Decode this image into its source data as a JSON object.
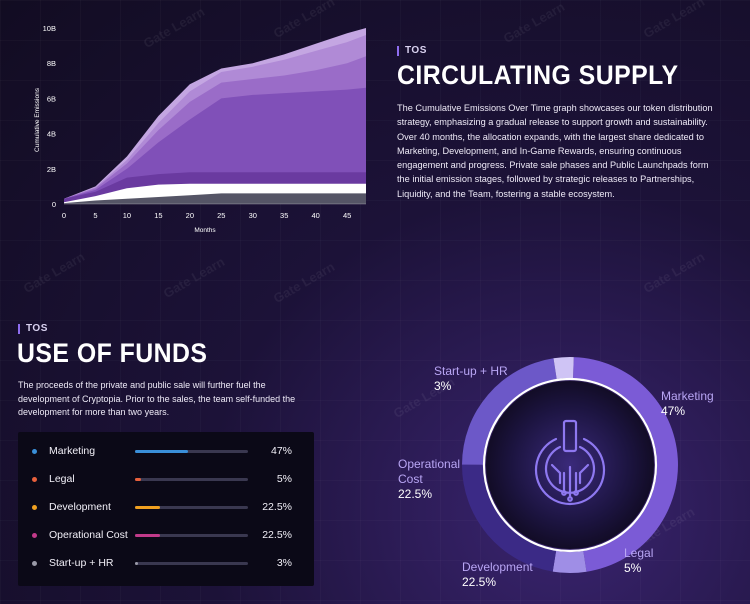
{
  "supply": {
    "tag": "TOS",
    "title": "CIRCULATING SUPPLY",
    "paragraph": "The Cumulative Emissions Over Time graph showcases our token distribution strategy, emphasizing a gradual release to support growth and sustainability. Over 40 months, the allocation expands, with the largest share dedicated to Marketing, Development, and In-Game Rewards, ensuring continuous engagement and progress. Private sale phases and Public Launchpads form the initial emission stages, followed by strategic releases to Partnerships, Liquidity, and the Team, fostering a stable ecosystem."
  },
  "funds": {
    "tag": "TOS",
    "title": "USE OF FUNDS",
    "paragraph": "The proceeds of the private and public sale will further fuel the development of Cryptopia. Prior to the sales, the team self-funded the development for more than two years.",
    "rows": [
      {
        "name": "Marketing",
        "value": "47%",
        "fraction": 0.47,
        "color": "#3a8fd9"
      },
      {
        "name": "Legal",
        "value": "5%",
        "fraction": 0.05,
        "color": "#e8603c"
      },
      {
        "name": "Development",
        "value": "22.5%",
        "fraction": 0.225,
        "color": "#f0a020"
      },
      {
        "name": "Operational Cost",
        "value": "22.5%",
        "fraction": 0.225,
        "color": "#c23a8a"
      },
      {
        "name": "Start-up + HR",
        "value": "3%",
        "fraction": 0.03,
        "color": "#9a9aa8"
      }
    ]
  },
  "donut": {
    "labels": {
      "startup": {
        "name": "Start-up + HR",
        "pct": "3%"
      },
      "marketing": {
        "name": "Marketing",
        "pct": "47%"
      },
      "operational": {
        "name_line1": "Operational",
        "name_line2": "Cost",
        "pct": "22.5%"
      },
      "development": {
        "name": "Development",
        "pct": "22.5%"
      },
      "legal": {
        "name": "Legal",
        "pct": "5%"
      }
    }
  },
  "watermark": "Gate Learn",
  "chart_data": [
    {
      "type": "area",
      "xlabel": "Months",
      "ylabel": "Cumulative Emissions",
      "x_ticks": [
        0,
        5,
        10,
        15,
        20,
        25,
        30,
        35,
        40,
        45
      ],
      "y_ticks": [
        "0",
        "2B",
        "4B",
        "6B",
        "8B",
        "10B"
      ],
      "xlim": [
        0,
        48
      ],
      "ylim": [
        0,
        10
      ],
      "x": [
        0,
        5,
        10,
        15,
        20,
        25,
        30,
        35,
        40,
        45,
        48
      ],
      "stack_colors": [
        "#555566",
        "#ffffff",
        "#6a3aa0",
        "#8050b8",
        "#9a6cc8",
        "#b08ad6",
        "#c4a6e2"
      ],
      "cumulative_boundaries": [
        [
          0.05,
          0.2,
          0.3,
          0.4,
          0.5,
          0.6,
          0.6,
          0.6,
          0.6,
          0.6,
          0.6
        ],
        [
          0.1,
          0.45,
          0.9,
          1.1,
          1.15,
          1.15,
          1.15,
          1.15,
          1.15,
          1.15,
          1.15
        ],
        [
          0.3,
          0.7,
          1.5,
          1.7,
          1.8,
          1.8,
          1.8,
          1.8,
          1.8,
          1.8,
          1.8
        ],
        [
          0.3,
          0.8,
          2.0,
          3.5,
          4.8,
          6.0,
          6.2,
          6.3,
          6.4,
          6.5,
          6.6
        ],
        [
          0.3,
          0.9,
          2.3,
          4.2,
          5.8,
          6.9,
          7.1,
          7.3,
          7.6,
          8.0,
          8.4
        ],
        [
          0.3,
          0.95,
          2.5,
          4.6,
          6.4,
          7.5,
          7.8,
          8.2,
          8.7,
          9.2,
          9.6
        ],
        [
          0.3,
          1.0,
          2.7,
          5.0,
          6.8,
          7.7,
          8.0,
          8.5,
          9.1,
          9.7,
          10.0
        ]
      ]
    },
    {
      "type": "pie",
      "variant": "donut",
      "categories": [
        "Marketing",
        "Legal",
        "Development",
        "Operational Cost",
        "Start-up + HR"
      ],
      "values": [
        47,
        5,
        22.5,
        22.5,
        3
      ],
      "colors": [
        "#7b5bd6",
        "#9f8ee6",
        "#3b2a86",
        "#6c58c8",
        "#cfc4f5"
      ]
    }
  ]
}
